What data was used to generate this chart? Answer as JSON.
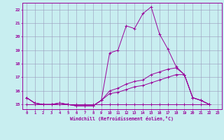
{
  "xlabel": "Windchill (Refroidissement éolien,°C)",
  "background_color": "#c8eef0",
  "line_color": "#990099",
  "grid_color": "#9999bb",
  "xlim": [
    -0.5,
    23.5
  ],
  "ylim": [
    14.65,
    22.5
  ],
  "x_ticks": [
    0,
    1,
    2,
    3,
    4,
    5,
    6,
    7,
    8,
    9,
    10,
    11,
    12,
    13,
    14,
    15,
    16,
    17,
    18,
    19,
    20,
    21,
    22,
    23
  ],
  "y_ticks": [
    15,
    16,
    17,
    18,
    19,
    20,
    21,
    22
  ],
  "series": [
    [
      15.5,
      15.1,
      15.0,
      15.0,
      15.1,
      15.0,
      14.9,
      14.9,
      14.9,
      15.3,
      18.8,
      19.0,
      20.8,
      20.6,
      21.7,
      22.2,
      20.2,
      19.1,
      17.8,
      17.2,
      15.5,
      15.3,
      15.0
    ],
    [
      15.5,
      15.1,
      15.0,
      15.0,
      15.1,
      15.0,
      14.9,
      14.9,
      14.9,
      15.3,
      16.0,
      16.2,
      16.5,
      16.7,
      16.8,
      17.2,
      17.4,
      17.6,
      17.7,
      17.2,
      15.5,
      15.3,
      15.0
    ],
    [
      15.5,
      15.1,
      15.0,
      15.0,
      15.1,
      15.0,
      14.9,
      14.9,
      14.9,
      15.3,
      15.8,
      15.9,
      16.1,
      16.3,
      16.4,
      16.6,
      16.8,
      17.0,
      17.2,
      17.2,
      15.5,
      15.3,
      15.0
    ],
    [
      15.0,
      15.0,
      15.0,
      15.0,
      15.0,
      15.0,
      15.0,
      15.0,
      15.0,
      15.0,
      15.0,
      15.0,
      15.0,
      15.0,
      15.0,
      15.0,
      15.0,
      15.0,
      15.0,
      15.0,
      15.0,
      15.0,
      15.0
    ]
  ]
}
